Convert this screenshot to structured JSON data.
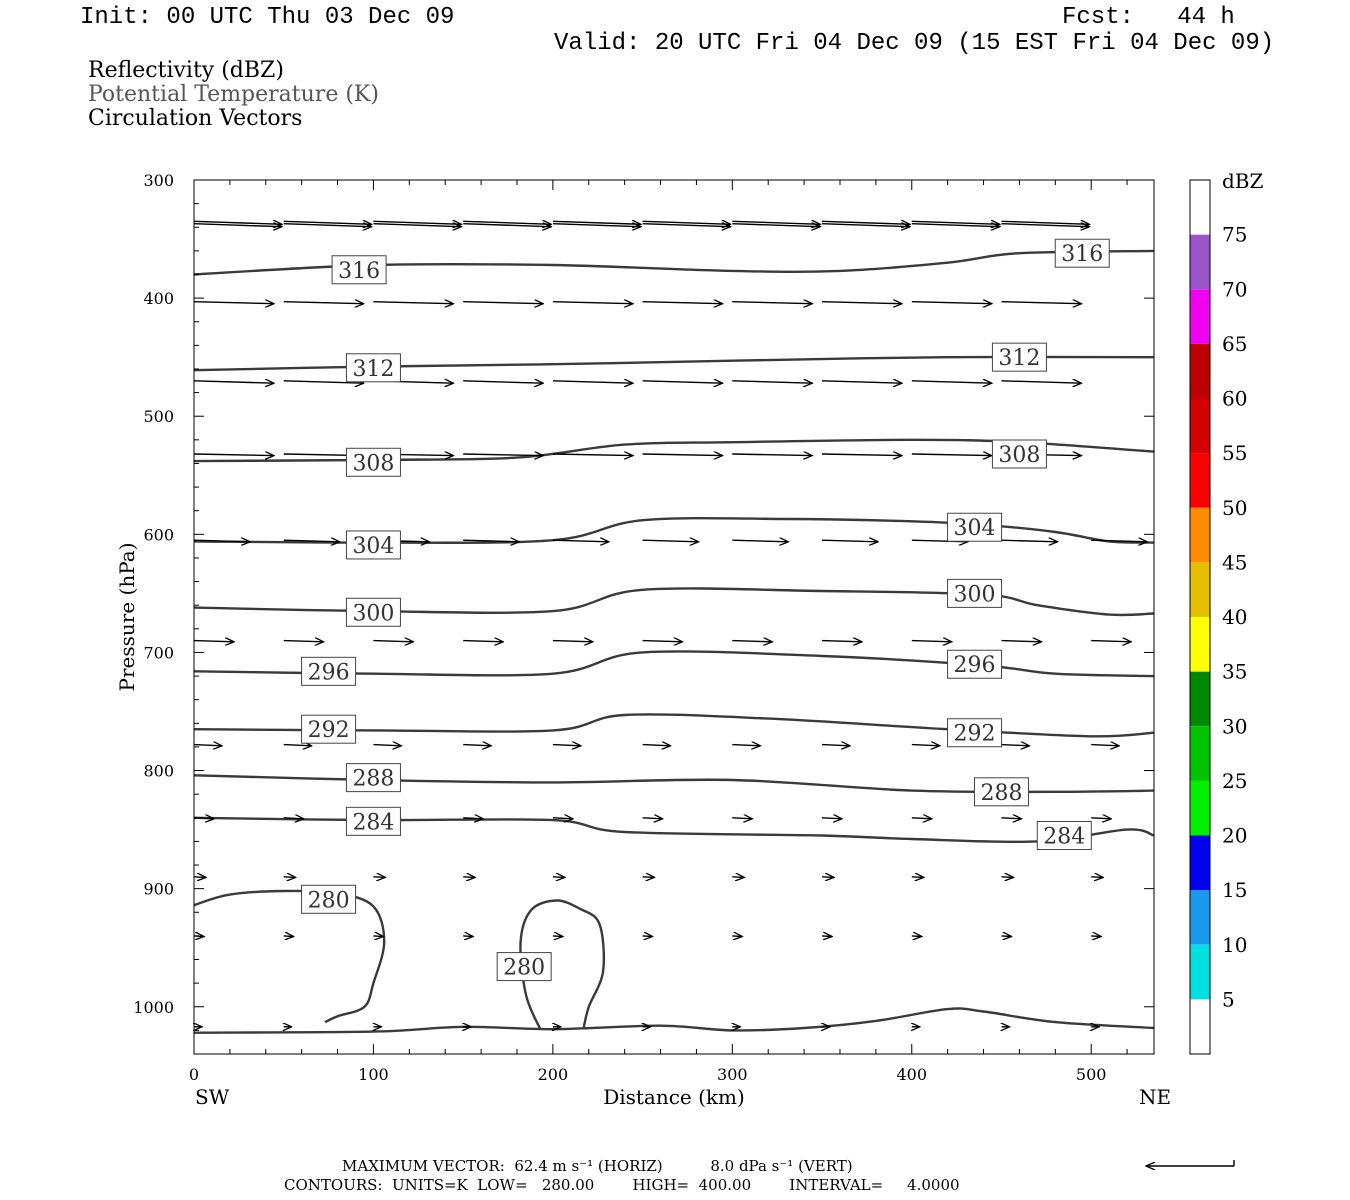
{
  "header": {
    "init": "Init: 00 UTC Thu 03 Dec 09",
    "fcst": "Fcst:   44 h",
    "valid": "Valid: 20 UTC Fri 04 Dec 09 (15 EST Fri 04 Dec 09)"
  },
  "fields": [
    {
      "label": "Reflectivity (dBZ)",
      "color": "#000000"
    },
    {
      "label": "Potential Temperature (K)",
      "color": "#555555"
    },
    {
      "label": "Circulation Vectors",
      "color": "#000000"
    }
  ],
  "chart_data": {
    "type": "line",
    "xlabel": "Distance (km)",
    "ylabel": "Pressure (hPa)",
    "xlim": [
      0,
      535
    ],
    "ylim": [
      300,
      1040
    ],
    "y_reversed": true,
    "x_ticks": [
      0,
      100,
      200,
      300,
      400,
      500
    ],
    "y_ticks": [
      300,
      400,
      500,
      600,
      700,
      800,
      900,
      1000
    ],
    "x_end_labels": {
      "left": "SW",
      "right": "NE"
    },
    "contours": [
      {
        "level": "316",
        "labels": [
          [
            92,
            376
          ],
          [
            495,
            362
          ]
        ],
        "points": [
          [
            0,
            380
          ],
          [
            100,
            372
          ],
          [
            200,
            372
          ],
          [
            300,
            377
          ],
          [
            360,
            377
          ],
          [
            420,
            370
          ],
          [
            460,
            362
          ],
          [
            535,
            360
          ]
        ]
      },
      {
        "level": "312",
        "labels": [
          [
            100,
            459
          ],
          [
            460,
            450
          ]
        ],
        "points": [
          [
            0,
            461
          ],
          [
            100,
            458
          ],
          [
            200,
            456
          ],
          [
            300,
            453
          ],
          [
            420,
            450
          ],
          [
            535,
            450
          ]
        ]
      },
      {
        "level": "308",
        "labels": [
          [
            100,
            539
          ],
          [
            460,
            532
          ]
        ],
        "points": [
          [
            0,
            538
          ],
          [
            100,
            537
          ],
          [
            180,
            535
          ],
          [
            240,
            524
          ],
          [
            300,
            522
          ],
          [
            400,
            520
          ],
          [
            460,
            522
          ],
          [
            535,
            530
          ]
        ]
      },
      {
        "level": "304",
        "labels": [
          [
            100,
            609
          ],
          [
            435,
            594
          ]
        ],
        "points": [
          [
            0,
            606
          ],
          [
            100,
            607
          ],
          [
            200,
            605
          ],
          [
            250,
            588
          ],
          [
            330,
            587
          ],
          [
            400,
            589
          ],
          [
            440,
            592
          ],
          [
            480,
            598
          ],
          [
            510,
            606
          ],
          [
            535,
            607
          ]
        ]
      },
      {
        "level": "300",
        "labels": [
          [
            100,
            666
          ],
          [
            435,
            650
          ]
        ],
        "points": [
          [
            0,
            662
          ],
          [
            100,
            665
          ],
          [
            200,
            665
          ],
          [
            250,
            647
          ],
          [
            350,
            648
          ],
          [
            440,
            651
          ],
          [
            470,
            660
          ],
          [
            510,
            668
          ],
          [
            535,
            667
          ]
        ]
      },
      {
        "level": "296",
        "labels": [
          [
            75,
            716
          ],
          [
            435,
            710
          ]
        ],
        "points": [
          [
            0,
            716
          ],
          [
            100,
            718
          ],
          [
            200,
            718
          ],
          [
            250,
            700
          ],
          [
            350,
            703
          ],
          [
            440,
            711
          ],
          [
            480,
            718
          ],
          [
            535,
            720
          ]
        ]
      },
      {
        "level": "292",
        "labels": [
          [
            75,
            765
          ],
          [
            435,
            768
          ]
        ],
        "points": [
          [
            0,
            765
          ],
          [
            100,
            766
          ],
          [
            200,
            766
          ],
          [
            240,
            753
          ],
          [
            320,
            756
          ],
          [
            420,
            765
          ],
          [
            500,
            771
          ],
          [
            535,
            768
          ]
        ]
      },
      {
        "level": "288",
        "labels": [
          [
            100,
            806
          ],
          [
            450,
            818
          ]
        ],
        "points": [
          [
            0,
            804
          ],
          [
            100,
            808
          ],
          [
            200,
            810
          ],
          [
            300,
            808
          ],
          [
            400,
            817
          ],
          [
            480,
            818
          ],
          [
            535,
            817
          ]
        ]
      },
      {
        "level": "284",
        "labels": [
          [
            100,
            843
          ],
          [
            485,
            855
          ]
        ],
        "points": [
          [
            0,
            840
          ],
          [
            100,
            842
          ],
          [
            200,
            842
          ],
          [
            240,
            852
          ],
          [
            350,
            855
          ],
          [
            400,
            858
          ],
          [
            470,
            860
          ],
          [
            520,
            850
          ],
          [
            535,
            855
          ]
        ]
      },
      {
        "level": "280",
        "labels": [
          [
            75,
            909
          ],
          [
            184,
            966
          ]
        ],
        "points": [
          [
            0,
            914
          ],
          [
            20,
            905
          ],
          [
            50,
            902
          ],
          [
            80,
            904
          ],
          [
            100,
            915
          ],
          [
            106,
            945
          ],
          [
            100,
            980
          ],
          [
            95,
            1000
          ],
          [
            80,
            1008
          ],
          [
            73,
            1013
          ]
        ]
      },
      {
        "level": "280",
        "labels": [],
        "points": [
          [
            193,
            1019
          ],
          [
            185,
            990
          ],
          [
            182,
            945
          ],
          [
            188,
            918
          ],
          [
            202,
            910
          ],
          [
            215,
            917
          ],
          [
            226,
            930
          ],
          [
            228,
            970
          ],
          [
            220,
            1000
          ],
          [
            217,
            1019
          ]
        ]
      },
      {
        "level": "",
        "labels": [],
        "points": [
          [
            0,
            1022
          ],
          [
            100,
            1021
          ],
          [
            150,
            1017
          ],
          [
            200,
            1019
          ],
          [
            260,
            1016
          ],
          [
            300,
            1020
          ],
          [
            340,
            1018
          ],
          [
            380,
            1012
          ],
          [
            420,
            1002
          ],
          [
            440,
            1004
          ],
          [
            480,
            1013
          ],
          [
            535,
            1018
          ]
        ]
      }
    ],
    "vectors": [
      {
        "p": 335,
        "u": 44,
        "v": 1.5,
        "x": [
          0,
          50,
          100,
          150,
          200,
          250,
          300,
          350,
          400,
          450,
          500
        ]
      },
      {
        "p": 337,
        "u": 44,
        "v": 1.5,
        "x": [
          0,
          50,
          100,
          150,
          200,
          250,
          300,
          350,
          400,
          450,
          500
        ]
      },
      {
        "p": 403,
        "u": 40,
        "v": 1.0,
        "x": [
          0,
          50,
          100,
          150,
          200,
          250,
          300,
          350,
          400,
          450,
          500
        ]
      },
      {
        "p": 470,
        "u": 40,
        "v": 1.2,
        "x": [
          0,
          50,
          100,
          150,
          200,
          250,
          300,
          350,
          400,
          450,
          500
        ]
      },
      {
        "p": 532,
        "u": 40,
        "v": 0.8,
        "x": [
          0,
          50,
          100,
          150,
          200,
          250,
          300,
          350,
          400,
          450,
          500
        ]
      },
      {
        "p": 605,
        "u": 28,
        "v": 0.8,
        "x": [
          0,
          50,
          100,
          150,
          200,
          250,
          300,
          350,
          400,
          450,
          500
        ]
      },
      {
        "p": 690,
        "u": 20,
        "v": 0.6,
        "x": [
          0,
          50,
          100,
          150,
          200,
          250,
          300,
          350,
          400,
          450,
          500
        ]
      },
      {
        "p": 778,
        "u": 14,
        "v": 0.6,
        "x": [
          0,
          50,
          100,
          150,
          200,
          250,
          300,
          350,
          400,
          450,
          500
        ]
      },
      {
        "p": 840,
        "u": 10,
        "v": 0.5,
        "x": [
          0,
          50,
          100,
          150,
          200,
          250,
          300,
          350,
          400,
          450,
          500
        ]
      },
      {
        "p": 890,
        "u": 6,
        "v": 0.3,
        "x": [
          0,
          50,
          100,
          150,
          200,
          250,
          300,
          350,
          400,
          450,
          500
        ]
      },
      {
        "p": 940,
        "u": 5,
        "v": 0.3,
        "x": [
          0,
          50,
          100,
          150,
          200,
          250,
          300,
          350,
          400,
          450,
          500
        ]
      },
      {
        "p": 1017,
        "u": 4,
        "v": 0,
        "x": [
          0,
          50,
          100,
          150,
          200,
          250,
          300,
          350,
          400,
          450,
          500
        ]
      }
    ],
    "colorbar": {
      "title": "dBZ",
      "levels": [
        "5",
        "10",
        "15",
        "20",
        "25",
        "30",
        "35",
        "40",
        "45",
        "50",
        "55",
        "60",
        "65",
        "70",
        "75"
      ],
      "colors": [
        "#ffffff",
        "#00e0e0",
        "#1a9aee",
        "#0000f0",
        "#00f000",
        "#00c400",
        "#008800",
        "#ffff00",
        "#e6be00",
        "#ff8c00",
        "#ff0000",
        "#d40000",
        "#bc0000",
        "#f000f0",
        "#9955c9",
        "#ffffff"
      ]
    }
  },
  "footer": {
    "line1": "MAXIMUM VECTOR:  62.4 m s⁻¹ (HORIZ)          8.0 dPa s⁻¹ (VERT)",
    "line2": "CONTOURS:  UNITS=K  LOW=   280.00        HIGH=  400.00        INTERVAL=     4.0000"
  }
}
